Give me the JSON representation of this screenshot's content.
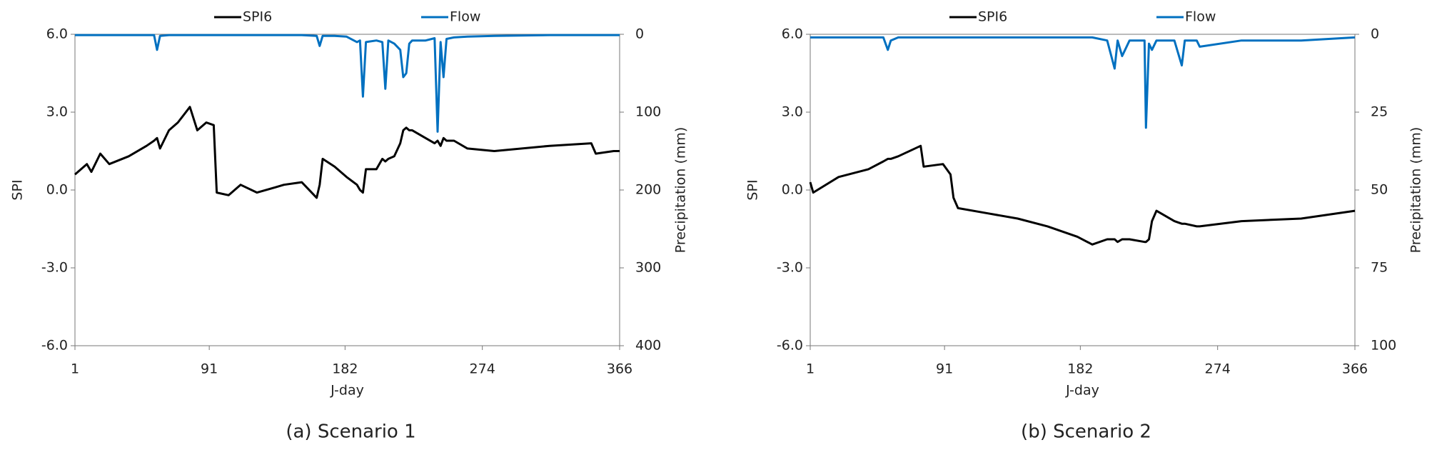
{
  "chart_data": [
    {
      "type": "line",
      "caption": "(a) Scenario 1",
      "xlabel": "J-day",
      "ylabel": "SPI",
      "y2label": "Precipitation (mm)",
      "legend": "top",
      "x": [
        1,
        9,
        12,
        18,
        24,
        37,
        49,
        54,
        56,
        58,
        64,
        70,
        78,
        83,
        89,
        94,
        96,
        104,
        112,
        123,
        135,
        141,
        153,
        163,
        165,
        167,
        175,
        183,
        190,
        192,
        194,
        196,
        203,
        207,
        209,
        211,
        215,
        219,
        221,
        223,
        225,
        227,
        236,
        242,
        244,
        246,
        248,
        250,
        255,
        264,
        282,
        319,
        347,
        350,
        362,
        366
      ],
      "series": [
        {
          "name": "SPI6",
          "color": "#000000",
          "values": [
            0.6,
            1.0,
            0.7,
            1.4,
            1.0,
            1.3,
            1.7,
            1.9,
            2.0,
            1.6,
            2.3,
            2.6,
            3.2,
            2.3,
            2.6,
            2.5,
            -0.1,
            -0.2,
            0.2,
            -0.1,
            0.1,
            0.2,
            0.3,
            -0.3,
            0.2,
            1.2,
            0.9,
            0.5,
            0.2,
            0.0,
            -0.1,
            0.8,
            0.8,
            1.2,
            1.1,
            1.2,
            1.3,
            1.8,
            2.3,
            2.4,
            2.3,
            2.3,
            2.0,
            1.8,
            1.9,
            1.7,
            2.0,
            1.9,
            1.9,
            1.6,
            1.5,
            1.7,
            1.8,
            1.4,
            1.5,
            1.5
          ]
        },
        {
          "name": "Flow",
          "color": "#0070c0",
          "axis": "y2",
          "values": [
            1,
            1,
            1,
            1,
            1,
            1,
            1,
            1,
            20,
            2,
            1,
            1,
            1,
            1,
            1,
            1,
            1,
            1,
            1,
            1,
            1,
            1,
            1,
            2,
            15,
            2,
            2,
            3,
            10,
            8,
            80,
            10,
            8,
            10,
            70,
            8,
            12,
            20,
            55,
            50,
            12,
            8,
            8,
            5,
            125,
            10,
            55,
            6,
            4,
            3,
            2,
            1,
            1,
            1,
            1,
            1
          ]
        }
      ],
      "xlim": [
        1,
        366
      ],
      "xticks": [
        1,
        91,
        182,
        274,
        366
      ],
      "ylim": [
        -6,
        6
      ],
      "yticks": [
        {
          "value": -6,
          "label": "-6.0"
        },
        {
          "value": -3,
          "label": "-3.0"
        },
        {
          "value": 0,
          "label": "0.0"
        },
        {
          "value": 3,
          "label": "3.0"
        },
        {
          "value": 6,
          "label": "6.0"
        }
      ],
      "y2lim": [
        0,
        400
      ],
      "y2ticks": [
        0,
        100,
        200,
        300,
        400
      ],
      "y2_inverted": true
    },
    {
      "type": "line",
      "caption": "(b) Scenario 2",
      "xlabel": "J-day",
      "ylabel": "SPI",
      "y2label": "Precipitation (mm)",
      "legend": "top",
      "x": [
        1,
        3,
        20,
        40,
        50,
        53,
        55,
        60,
        75,
        77,
        90,
        95,
        97,
        100,
        120,
        140,
        160,
        180,
        190,
        200,
        205,
        207,
        210,
        215,
        225,
        226,
        228,
        230,
        233,
        245,
        250,
        252,
        260,
        262,
        290,
        330,
        366
      ],
      "series": [
        {
          "name": "SPI6",
          "color": "#000000",
          "values": [
            0.3,
            -0.1,
            0.5,
            0.8,
            1.1,
            1.2,
            1.2,
            1.3,
            1.7,
            0.9,
            1.0,
            0.6,
            -0.3,
            -0.7,
            -0.9,
            -1.1,
            -1.4,
            -1.8,
            -2.1,
            -1.9,
            -1.9,
            -2.0,
            -1.9,
            -1.9,
            -2.0,
            -2.0,
            -1.9,
            -1.2,
            -0.8,
            -1.2,
            -1.3,
            -1.3,
            -1.4,
            -1.4,
            -1.2,
            -1.1,
            -0.8
          ]
        },
        {
          "name": "Flow",
          "color": "#0070c0",
          "axis": "y2",
          "values": [
            1,
            1,
            1,
            1,
            1,
            5,
            2,
            1,
            1,
            1,
            1,
            1,
            1,
            1,
            1,
            1,
            1,
            1,
            1,
            2,
            11,
            2,
            7,
            2,
            2,
            30,
            3,
            5,
            2,
            2,
            10,
            2,
            2,
            4,
            2,
            2,
            1
          ]
        }
      ],
      "xlim": [
        1,
        366
      ],
      "xticks": [
        1,
        91,
        182,
        274,
        366
      ],
      "ylim": [
        -6,
        6
      ],
      "yticks": [
        {
          "value": -6,
          "label": "-6.0"
        },
        {
          "value": -3,
          "label": "-3.0"
        },
        {
          "value": 0,
          "label": "0.0"
        },
        {
          "value": 3,
          "label": "3.0"
        },
        {
          "value": 6,
          "label": "6.0"
        }
      ],
      "y2lim": [
        0,
        100
      ],
      "y2ticks": [
        0,
        25,
        50,
        75,
        100
      ],
      "y2_inverted": true
    }
  ]
}
